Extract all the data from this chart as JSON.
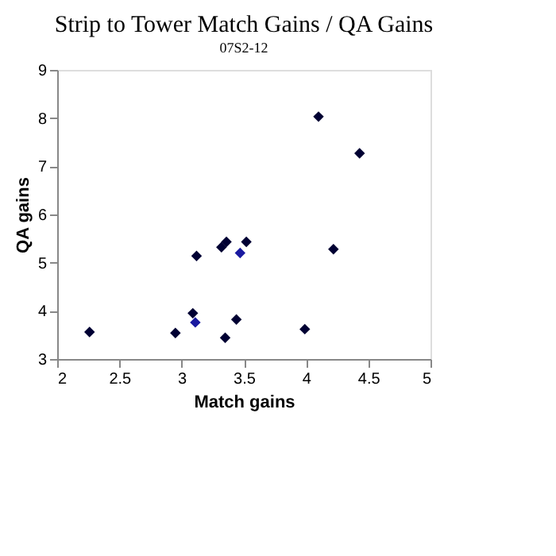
{
  "chart_data": {
    "type": "scatter",
    "title": "Strip to Tower Match Gains / QA Gains",
    "subtitle": "07S2-12",
    "xlabel": "Match gains",
    "ylabel": "QA gains",
    "xlim": [
      2,
      5
    ],
    "xticks": [
      2,
      2.5,
      3,
      3.5,
      4,
      4.5,
      5
    ],
    "ylim": [
      3,
      9
    ],
    "yticks": [
      3,
      4,
      5,
      6,
      7,
      8,
      9
    ],
    "grid": false,
    "legend": false,
    "marker": "diamond",
    "series": [
      {
        "color": "#000033",
        "x": [
          2.26,
          2.95,
          3.09,
          3.12,
          3.32,
          3.36,
          3.52,
          3.44,
          3.35,
          3.99,
          4.22,
          4.1,
          4.43
        ],
        "values": [
          3.56,
          3.54,
          3.95,
          5.14,
          5.32,
          5.43,
          5.43,
          3.82,
          3.44,
          3.62,
          5.28,
          8.03,
          7.27
        ]
      },
      {
        "color": "#1a1aa0",
        "x": [
          3.11,
          3.47
        ],
        "values": [
          3.76,
          5.2
        ]
      }
    ]
  }
}
